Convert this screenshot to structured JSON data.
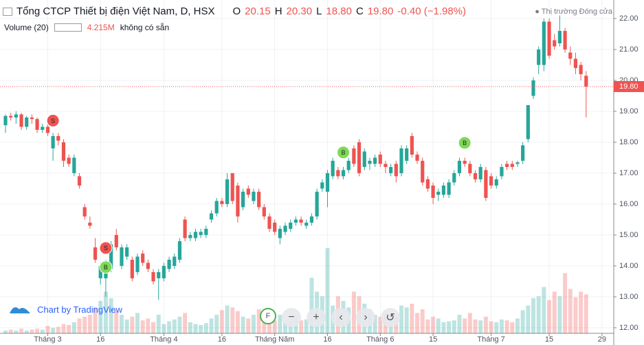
{
  "header": {
    "title": "Tổng CTCP Thiết bị điện Việt Nam, D, HSX",
    "open_label": "O",
    "open": "20.15",
    "high_label": "H",
    "high": "20.30",
    "low_label": "L",
    "low": "18.80",
    "close_label": "C",
    "close": "19.80",
    "change": "-0.40 (−1.98%)",
    "volume_title": "Volume (20)",
    "volume_value": "4.215M",
    "volume_note": "không có sẵn",
    "market_status": "Thị trường Đóng cửa"
  },
  "footer": {
    "logo": "Chart by TradingView",
    "buttons": [
      "F",
      "−",
      "+",
      "‹",
      "›",
      "↺"
    ]
  },
  "chart_data": {
    "type": "candlestick",
    "ylim": [
      11.82,
      22.6
    ],
    "yticks": [
      {
        "value": 12,
        "label": "12.00"
      },
      {
        "value": 13,
        "label": "13.00"
      },
      {
        "value": 14,
        "label": "14.00"
      },
      {
        "value": 15,
        "label": "15.00"
      },
      {
        "value": 16,
        "label": "16.00"
      },
      {
        "value": 17,
        "label": "17.00"
      },
      {
        "value": 18,
        "label": "18.00"
      },
      {
        "value": 19,
        "label": "19.00"
      },
      {
        "value": 20,
        "label": "20.00"
      },
      {
        "value": 21,
        "label": "21.00"
      },
      {
        "value": 22,
        "label": "22.00"
      }
    ],
    "xticks": [
      {
        "value": 8,
        "label": "Tháng 3"
      },
      {
        "value": 18,
        "label": "16"
      },
      {
        "value": 30,
        "label": "Tháng 4"
      },
      {
        "value": 41,
        "label": "16"
      },
      {
        "value": 51,
        "label": "Tháng Năm"
      },
      {
        "value": 61,
        "label": "16"
      },
      {
        "value": 71,
        "label": "Tháng 6"
      },
      {
        "value": 81,
        "label": "15"
      },
      {
        "value": 92,
        "label": "Tháng 7"
      },
      {
        "value": 103,
        "label": "15"
      },
      {
        "value": 113,
        "label": "29"
      }
    ],
    "up_color": "#26a69a",
    "down_color": "#ef5350",
    "grid": true,
    "last_price": {
      "value": 19.8,
      "label": "19.80"
    },
    "candles": [
      [
        18.55,
        18.9,
        18.3,
        18.85
      ],
      [
        18.85,
        18.95,
        18.7,
        18.8
      ],
      [
        18.8,
        19.0,
        18.6,
        18.9
      ],
      [
        18.9,
        18.95,
        18.4,
        18.5
      ],
      [
        18.5,
        18.85,
        18.4,
        18.8
      ],
      [
        18.8,
        18.9,
        18.6,
        18.75
      ],
      [
        18.75,
        18.8,
        18.3,
        18.4
      ],
      [
        18.4,
        18.6,
        18.3,
        18.5
      ],
      [
        18.5,
        18.6,
        18.2,
        18.3
      ],
      [
        17.8,
        18.3,
        17.4,
        18.2
      ],
      [
        18.2,
        18.3,
        17.9,
        18.05
      ],
      [
        18.0,
        18.1,
        17.2,
        17.4
      ],
      [
        17.5,
        17.6,
        17.2,
        17.3
      ],
      [
        17.0,
        17.6,
        16.9,
        17.5
      ],
      [
        16.9,
        17.0,
        16.5,
        16.6
      ],
      [
        15.9,
        16.0,
        15.5,
        15.6
      ],
      [
        15.4,
        15.6,
        15.2,
        15.3
      ],
      [
        14.6,
        14.9,
        14.1,
        14.2
      ],
      [
        13.6,
        14.1,
        13.4,
        14.0
      ],
      [
        13.6,
        14.2,
        13.0,
        13.9
      ],
      [
        13.9,
        14.8,
        13.8,
        14.7
      ],
      [
        15.0,
        15.2,
        14.5,
        14.6
      ],
      [
        14.0,
        14.7,
        13.9,
        14.6
      ],
      [
        14.3,
        14.7,
        14.2,
        14.6
      ],
      [
        14.2,
        14.3,
        13.5,
        13.6
      ],
      [
        13.8,
        14.4,
        13.7,
        14.3
      ],
      [
        14.4,
        14.5,
        14.0,
        14.1
      ],
      [
        14.1,
        14.2,
        13.8,
        13.9
      ],
      [
        13.8,
        13.9,
        13.4,
        13.5
      ],
      [
        13.6,
        13.9,
        12.9,
        13.8
      ],
      [
        13.6,
        14.1,
        13.5,
        14.0
      ],
      [
        13.9,
        14.3,
        13.8,
        14.2
      ],
      [
        14.0,
        14.4,
        13.9,
        14.3
      ],
      [
        14.2,
        14.9,
        14.1,
        14.8
      ],
      [
        15.5,
        15.6,
        14.8,
        14.9
      ],
      [
        14.9,
        15.1,
        14.8,
        15.0
      ],
      [
        14.9,
        15.2,
        14.8,
        15.1
      ],
      [
        15.0,
        15.2,
        14.9,
        15.1
      ],
      [
        15.0,
        15.3,
        14.9,
        15.2
      ],
      [
        15.5,
        15.8,
        15.4,
        15.7
      ],
      [
        15.7,
        16.2,
        15.6,
        16.1
      ],
      [
        16.1,
        16.2,
        15.9,
        16.0
      ],
      [
        16.0,
        17.0,
        15.9,
        16.8
      ],
      [
        17.0,
        17.0,
        16.0,
        16.1
      ],
      [
        16.6,
        16.7,
        15.4,
        15.6
      ],
      [
        15.9,
        16.5,
        15.8,
        16.4
      ],
      [
        16.5,
        16.6,
        16.2,
        16.3
      ],
      [
        16.1,
        16.5,
        16.0,
        16.4
      ],
      [
        16.4,
        16.5,
        15.8,
        15.9
      ],
      [
        15.9,
        16.0,
        15.5,
        15.6
      ],
      [
        15.6,
        15.7,
        15.1,
        15.2
      ],
      [
        15.4,
        15.5,
        15.0,
        15.1
      ],
      [
        14.9,
        15.3,
        14.7,
        15.2
      ],
      [
        15.1,
        15.4,
        15.0,
        15.3
      ],
      [
        15.2,
        15.5,
        15.1,
        15.4
      ],
      [
        15.4,
        15.6,
        15.3,
        15.5
      ],
      [
        15.5,
        15.6,
        15.3,
        15.4
      ],
      [
        15.3,
        15.5,
        15.2,
        15.4
      ],
      [
        15.4,
        15.7,
        15.3,
        15.6
      ],
      [
        15.6,
        16.5,
        15.5,
        16.4
      ],
      [
        16.5,
        16.8,
        16.4,
        16.7
      ],
      [
        16.4,
        17.1,
        15.9,
        17.0
      ],
      [
        16.9,
        17.5,
        16.8,
        17.4
      ],
      [
        17.1,
        17.2,
        16.8,
        16.9
      ],
      [
        16.9,
        17.2,
        16.8,
        17.1
      ],
      [
        17.1,
        17.5,
        17.0,
        17.4
      ],
      [
        17.8,
        17.9,
        17.2,
        17.3
      ],
      [
        18.0,
        18.1,
        16.9,
        17.0
      ],
      [
        17.2,
        17.8,
        17.1,
        17.7
      ],
      [
        17.3,
        17.5,
        17.1,
        17.4
      ],
      [
        17.3,
        17.6,
        17.2,
        17.5
      ],
      [
        17.6,
        17.7,
        17.2,
        17.3
      ],
      [
        17.3,
        17.4,
        17.0,
        17.2
      ],
      [
        17.0,
        17.3,
        16.9,
        17.2
      ],
      [
        17.3,
        17.4,
        16.7,
        16.9
      ],
      [
        17.0,
        17.9,
        16.9,
        17.8
      ],
      [
        17.4,
        17.9,
        17.3,
        17.8
      ],
      [
        18.2,
        18.3,
        17.5,
        17.6
      ],
      [
        17.6,
        17.7,
        17.3,
        17.4
      ],
      [
        17.4,
        17.5,
        16.6,
        16.7
      ],
      [
        16.8,
        16.9,
        16.4,
        16.5
      ],
      [
        16.6,
        16.7,
        16.0,
        16.2
      ],
      [
        16.3,
        16.5,
        16.1,
        16.4
      ],
      [
        16.3,
        16.7,
        16.2,
        16.6
      ],
      [
        16.3,
        16.8,
        16.2,
        16.7
      ],
      [
        16.7,
        17.1,
        16.6,
        17.0
      ],
      [
        17.0,
        17.5,
        16.9,
        17.4
      ],
      [
        17.4,
        17.5,
        17.2,
        17.3
      ],
      [
        17.3,
        17.4,
        16.9,
        17.0
      ],
      [
        17.0,
        17.1,
        16.7,
        16.8
      ],
      [
        16.8,
        17.3,
        16.7,
        17.2
      ],
      [
        17.1,
        17.2,
        16.1,
        16.2
      ],
      [
        16.9,
        17.0,
        16.5,
        16.6
      ],
      [
        16.6,
        16.9,
        16.5,
        16.8
      ],
      [
        16.9,
        17.3,
        16.8,
        17.2
      ],
      [
        17.3,
        17.4,
        17.1,
        17.2
      ],
      [
        17.3,
        17.4,
        17.1,
        17.2
      ],
      [
        17.3,
        17.4,
        17.2,
        17.35
      ],
      [
        17.4,
        18.0,
        17.3,
        17.9
      ],
      [
        18.1,
        19.2,
        18.0,
        19.2
      ],
      [
        19.5,
        20.1,
        19.4,
        20.0
      ],
      [
        20.5,
        21.1,
        20.2,
        21.0
      ],
      [
        20.5,
        22.0,
        20.3,
        21.9
      ],
      [
        21.9,
        22.0,
        20.7,
        20.8
      ],
      [
        21.3,
        21.5,
        21.0,
        21.1
      ],
      [
        21.2,
        22.1,
        21.1,
        21.6
      ],
      [
        21.6,
        21.7,
        20.9,
        21.0
      ],
      [
        20.9,
        21.1,
        20.5,
        20.7
      ],
      [
        20.7,
        20.9,
        20.2,
        20.4
      ],
      [
        20.5,
        20.6,
        20.0,
        20.2
      ],
      [
        20.15,
        20.3,
        18.8,
        19.8
      ]
    ],
    "volume_ylim": [
      0,
      36
    ],
    "volume": [
      0.3,
      0.4,
      0.3,
      0.5,
      0.3,
      0.4,
      0.5,
      0.4,
      0.8,
      0.6,
      0.7,
      1.0,
      0.9,
      1.2,
      1.6,
      1.8,
      2.0,
      2.8,
      3.5,
      4.5,
      3.8,
      2.5,
      2.0,
      1.5,
      1.8,
      2.2,
      1.4,
      1.6,
      1.2,
      2.0,
      1.0,
      1.3,
      1.5,
      1.8,
      2.2,
      1.2,
      1.0,
      0.9,
      1.1,
      1.6,
      2.0,
      2.5,
      3.0,
      2.8,
      2.4,
      1.8,
      1.6,
      2.0,
      2.6,
      1.9,
      1.5,
      1.4,
      2.0,
      1.2,
      1.3,
      1.6,
      1.4,
      1.5,
      6.0,
      4.5,
      4.0,
      9.2,
      3.0,
      4.0,
      3.5,
      2.8,
      4.5,
      4.0,
      3.2,
      2.6,
      2.0,
      1.8,
      2.2,
      1.6,
      1.8,
      3.0,
      2.8,
      3.2,
      2.2,
      2.6,
      1.5,
      1.8,
      1.6,
      1.2,
      1.3,
      1.4,
      2.0,
      1.6,
      2.2,
      1.5,
      1.4,
      1.8,
      1.3,
      1.2,
      1.5,
      1.4,
      1.2,
      1.6,
      2.5,
      3.0,
      3.8,
      4.0,
      5.0,
      3.6,
      4.5,
      4.0,
      6.5,
      4.8,
      3.9,
      4.5,
      4.215
    ],
    "markers": [
      {
        "index": 9,
        "price": 18.7,
        "label": "S",
        "color": "#ef5350"
      },
      {
        "index": 19,
        "price": 14.58,
        "label": "S",
        "color": "#ef5350"
      },
      {
        "index": 19,
        "price": 13.96,
        "label": "B",
        "color": "#7ed957"
      },
      {
        "index": 64,
        "price": 17.67,
        "label": "B",
        "color": "#7ed957"
      },
      {
        "index": 87,
        "price": 17.98,
        "label": "B",
        "color": "#7ed957"
      }
    ]
  }
}
